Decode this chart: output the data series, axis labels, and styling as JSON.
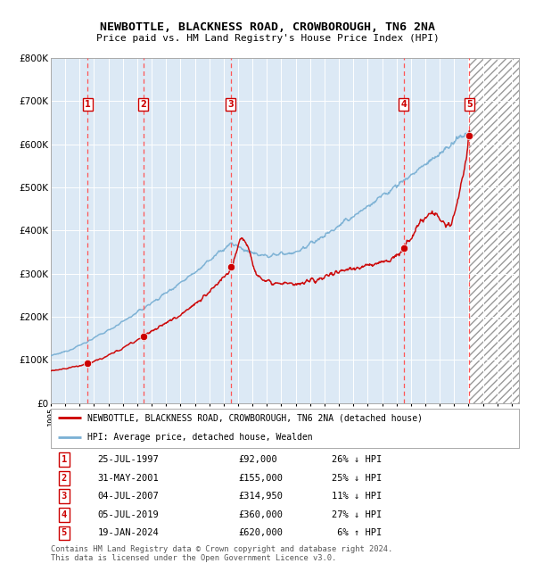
{
  "title": "NEWBOTTLE, BLACKNESS ROAD, CROWBOROUGH, TN6 2NA",
  "subtitle": "Price paid vs. HM Land Registry's House Price Index (HPI)",
  "bg_color": "#dce9f5",
  "grid_color": "#ffffff",
  "red_line_color": "#cc0000",
  "blue_line_color": "#7ab0d4",
  "sale_dot_color": "#cc0000",
  "dashed_line_color": "#ff5555",
  "x_start": 1995.0,
  "x_end": 2027.5,
  "y_min": 0,
  "y_max": 800000,
  "y_ticks": [
    0,
    100000,
    200000,
    300000,
    400000,
    500000,
    600000,
    700000,
    800000
  ],
  "x_ticks": [
    1995,
    1996,
    1997,
    1998,
    1999,
    2000,
    2001,
    2002,
    2003,
    2004,
    2005,
    2006,
    2007,
    2008,
    2009,
    2010,
    2011,
    2012,
    2013,
    2014,
    2015,
    2016,
    2017,
    2018,
    2019,
    2020,
    2021,
    2022,
    2023,
    2024,
    2025,
    2026,
    2027
  ],
  "sale_points": [
    {
      "num": 1,
      "date": "25-JUL-1997",
      "year": 1997.56,
      "price": 92000
    },
    {
      "num": 2,
      "date": "31-MAY-2001",
      "year": 2001.41,
      "price": 155000
    },
    {
      "num": 3,
      "date": "04-JUL-2007",
      "year": 2007.5,
      "price": 314950
    },
    {
      "num": 4,
      "date": "05-JUL-2019",
      "year": 2019.5,
      "price": 360000
    },
    {
      "num": 5,
      "date": "19-JAN-2024",
      "year": 2024.05,
      "price": 620000
    }
  ],
  "legend_entries": [
    {
      "label": "NEWBOTTLE, BLACKNESS ROAD, CROWBOROUGH, TN6 2NA (detached house)",
      "color": "#cc0000"
    },
    {
      "label": "HPI: Average price, detached house, Wealden",
      "color": "#7ab0d4"
    }
  ],
  "table_rows": [
    {
      "num": 1,
      "date": "25-JUL-1997",
      "price": "£92,000",
      "pct": "26% ↓ HPI"
    },
    {
      "num": 2,
      "date": "31-MAY-2001",
      "price": "£155,000",
      "pct": "25% ↓ HPI"
    },
    {
      "num": 3,
      "date": "04-JUL-2007",
      "price": "£314,950",
      "pct": "11% ↓ HPI"
    },
    {
      "num": 4,
      "date": "05-JUL-2019",
      "price": "£360,000",
      "pct": "27% ↓ HPI"
    },
    {
      "num": 5,
      "date": "19-JAN-2024",
      "price": "£620,000",
      "pct": " 6% ↑ HPI"
    }
  ],
  "footnote": "Contains HM Land Registry data © Crown copyright and database right 2024.\nThis data is licensed under the Open Government Licence v3.0.",
  "future_hatch_start": 2024.05
}
